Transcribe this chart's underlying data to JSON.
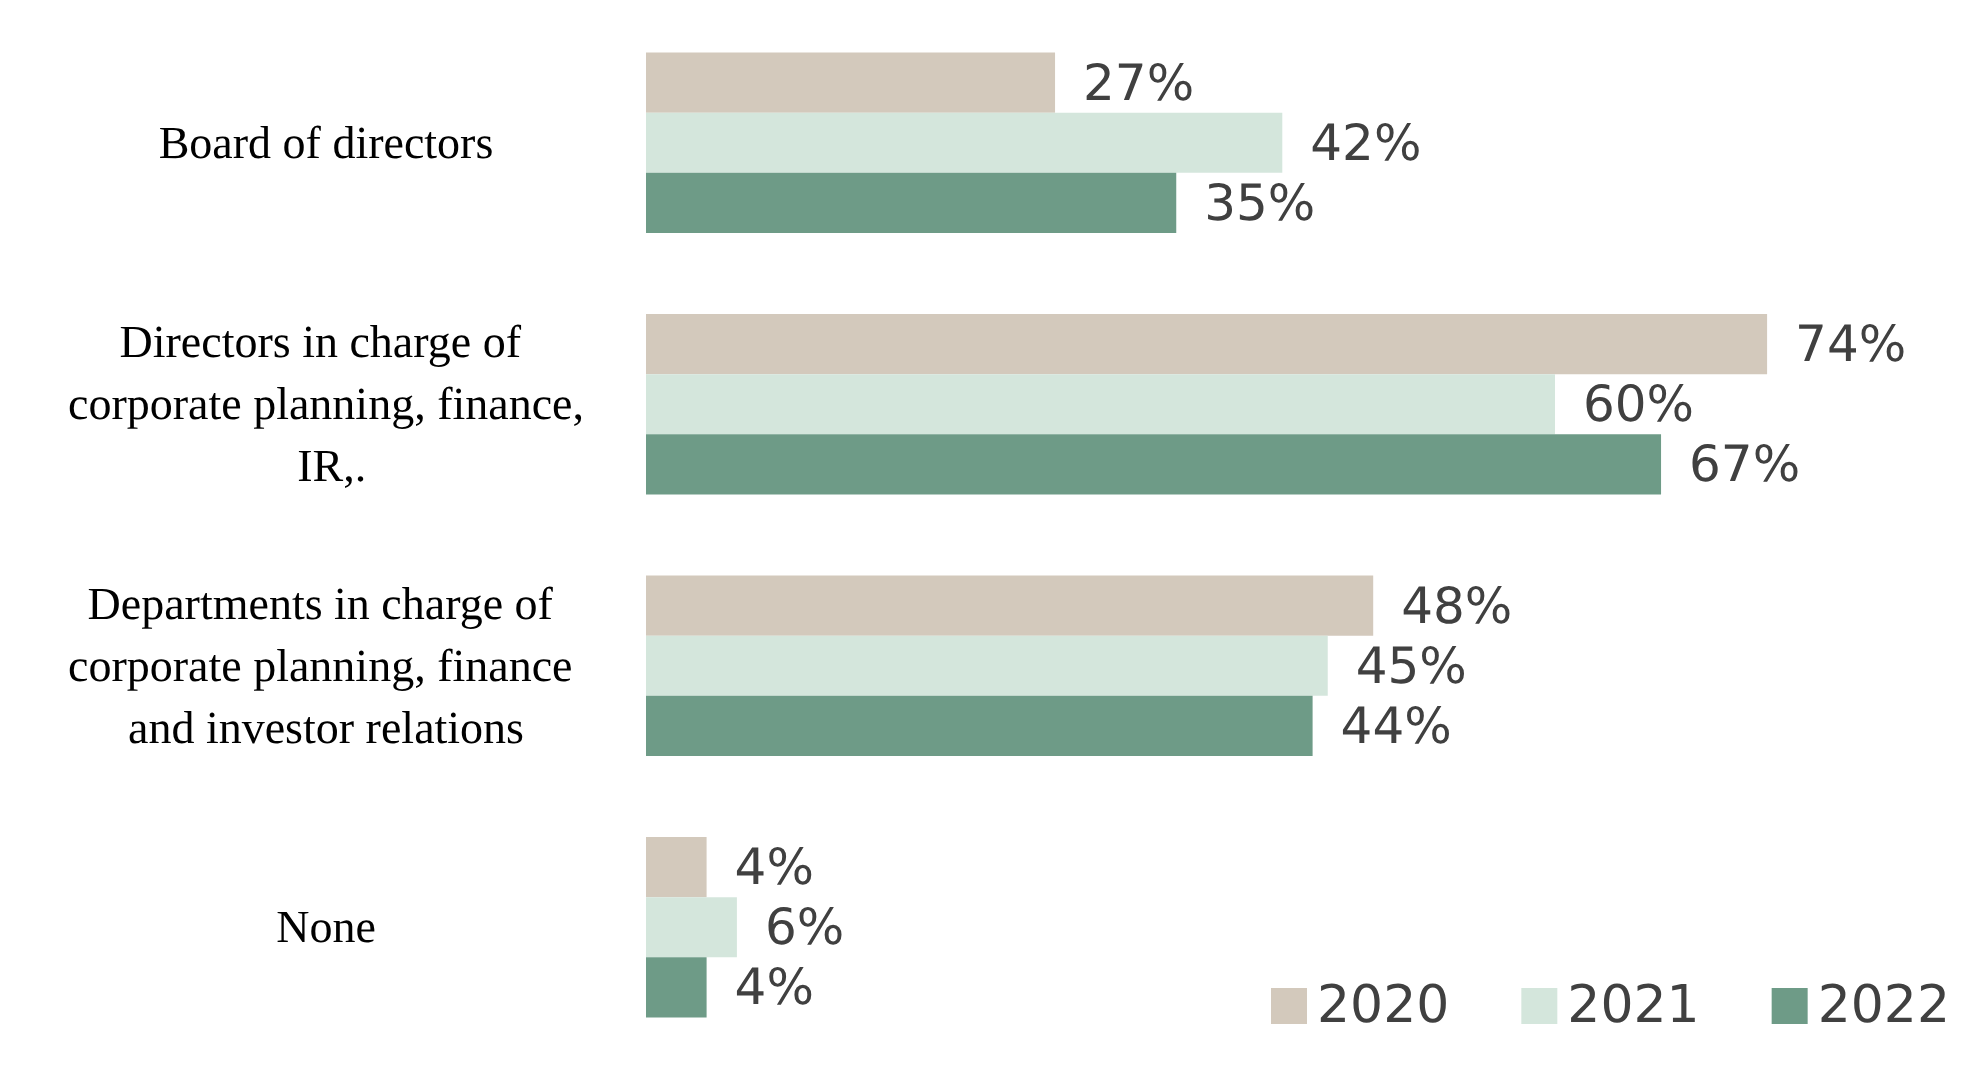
{
  "chart_data": {
    "type": "bar",
    "orientation": "horizontal",
    "categories": [
      "Board of directors",
      "Directors in charge of corporate planning, finance, IR,.",
      "Departments in charge of corporate planning, finance and investor relations",
      "None"
    ],
    "series": [
      {
        "name": "2020",
        "color": "#d3c9bc",
        "values": [
          27,
          74,
          48,
          4
        ],
        "value_labels": [
          "27%",
          "74%",
          "48%",
          "4%"
        ]
      },
      {
        "name": "2021",
        "color": "#d4e6dc",
        "values": [
          42,
          60,
          45,
          6
        ],
        "value_labels": [
          "42%",
          "60%",
          "45%",
          "6%"
        ]
      },
      {
        "name": "2022",
        "color": "#6e9b87",
        "values": [
          35,
          67,
          44,
          4
        ],
        "value_labels": [
          "35%",
          "67%",
          "44%",
          "4%"
        ]
      }
    ],
    "legend": "bottom right"
  }
}
